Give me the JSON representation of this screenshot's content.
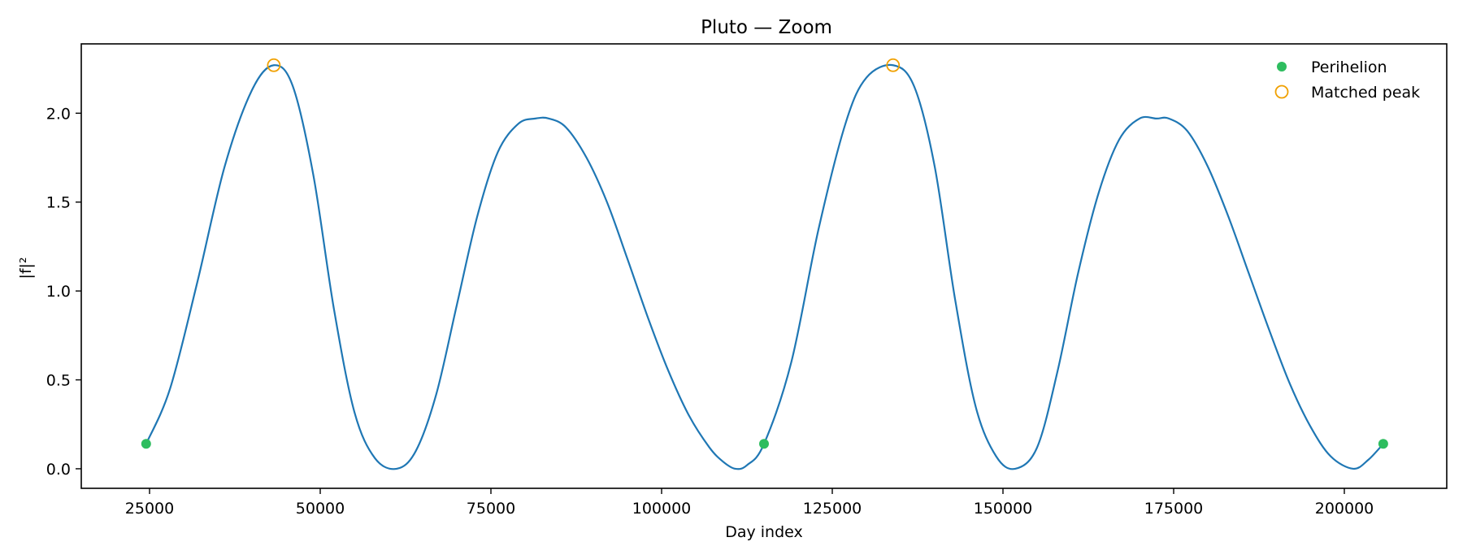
{
  "chart_data": {
    "type": "line",
    "title": "Pluto — Zoom",
    "xlabel": "Day index",
    "ylabel": "|f|²",
    "xlim": [
      15000,
      215000
    ],
    "ylim": [
      -0.11,
      2.39
    ],
    "xticks": [
      25000,
      50000,
      75000,
      100000,
      125000,
      150000,
      175000,
      200000
    ],
    "yticks": [
      0.0,
      0.5,
      1.0,
      1.5,
      2.0
    ],
    "xtick_labels": [
      "25000",
      "50000",
      "75000",
      "100000",
      "125000",
      "150000",
      "175000",
      "200000"
    ],
    "ytick_labels": [
      "0.0",
      "0.5",
      "1.0",
      "1.5",
      "2.0"
    ],
    "grid": false,
    "legend_position": "top-right",
    "series": [
      {
        "kind": "line",
        "color": "#1f77b4",
        "x": [
          24500,
          28000,
          32000,
          36000,
          40000,
          43200,
          46000,
          49000,
          52000,
          55000,
          58000,
          61200,
          64000,
          67000,
          70000,
          73000,
          76000,
          79000,
          81500,
          83500,
          86000,
          89000,
          92000,
          95000,
          98000,
          101000,
          104000,
          107000,
          109000,
          110800,
          112500,
          115000,
          119000,
          123000,
          127000,
          130000,
          133900,
          137000,
          140000,
          143000,
          146000,
          149000,
          151800,
          155000,
          158000,
          161000,
          164000,
          167000,
          170000,
          172500,
          174300,
          177000,
          180000,
          183000,
          186000,
          189000,
          192000,
          195000,
          198000,
          201300,
          203500,
          205700
        ],
        "y": [
          0.14,
          0.45,
          1.05,
          1.7,
          2.13,
          2.27,
          2.15,
          1.65,
          0.9,
          0.32,
          0.06,
          0.0,
          0.1,
          0.42,
          0.92,
          1.42,
          1.78,
          1.94,
          1.97,
          1.97,
          1.92,
          1.75,
          1.5,
          1.18,
          0.85,
          0.55,
          0.3,
          0.12,
          0.04,
          0.0,
          0.02,
          0.14,
          0.6,
          1.35,
          1.95,
          2.2,
          2.27,
          2.15,
          1.7,
          0.95,
          0.35,
          0.07,
          0.0,
          0.12,
          0.55,
          1.1,
          1.55,
          1.85,
          1.97,
          1.97,
          1.97,
          1.9,
          1.7,
          1.42,
          1.1,
          0.78,
          0.48,
          0.24,
          0.07,
          0.0,
          0.05,
          0.14
        ]
      },
      {
        "name": "Perihelion",
        "kind": "scatter",
        "marker": "filled-circle",
        "color": "#2ebd5f",
        "x": [
          24500,
          115000,
          205700
        ],
        "y": [
          0.14,
          0.14,
          0.14
        ]
      },
      {
        "name": "Matched peak",
        "kind": "scatter",
        "marker": "hollow-circle",
        "color": "#f0a000",
        "x": [
          43200,
          133900
        ],
        "y": [
          2.27,
          2.27
        ]
      }
    ]
  }
}
